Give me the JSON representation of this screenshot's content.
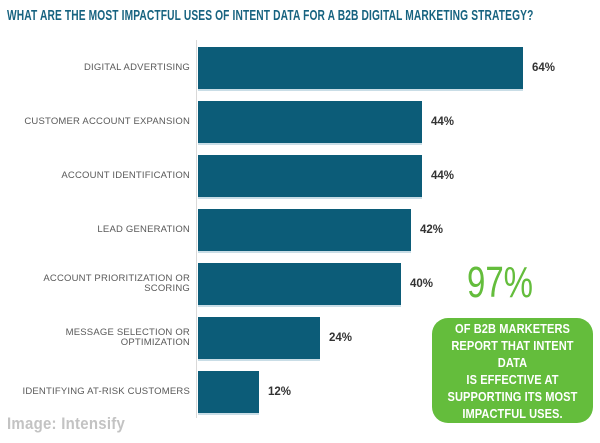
{
  "title": "WHAT ARE THE MOST IMPACTFUL USES OF INTENT DATA FOR A B2B DIGITAL MARKETING STRATEGY?",
  "chart_data": {
    "type": "bar",
    "orientation": "horizontal",
    "categories": [
      "DIGITAL ADVERTISING",
      "CUSTOMER ACCOUNT EXPANSION",
      "ACCOUNT IDENTIFICATION",
      "LEAD GENERATION",
      "ACCOUNT PRIORITIZATION OR SCORING",
      "MESSAGE SELECTION OR OPTIMIZATION",
      "IDENTIFYING AT-RISK CUSTOMERS"
    ],
    "values": [
      64,
      44,
      44,
      42,
      40,
      24,
      12
    ],
    "value_suffix": "%",
    "xlabel": "",
    "ylabel": "",
    "xlim": [
      0,
      70
    ],
    "grid": false,
    "legend": "none",
    "bar_color": "#0c5c78",
    "axis_line_color": "#d9d9d9"
  },
  "callout": {
    "stat": "97%",
    "text": "OF B2B MARKETERS\nREPORT THAT INTENT DATA\nIS EFFECTIVE AT\nSUPPORTING ITS MOST\nIMPACTFUL USES.",
    "accent_color": "#64bd3c",
    "text_color": "#ffffff"
  },
  "footer": {
    "credit": "Image: Intensify"
  },
  "colors": {
    "title": "#176380",
    "category_label": "#595959",
    "value_label": "#333333",
    "footer": "#c3c3c3"
  }
}
